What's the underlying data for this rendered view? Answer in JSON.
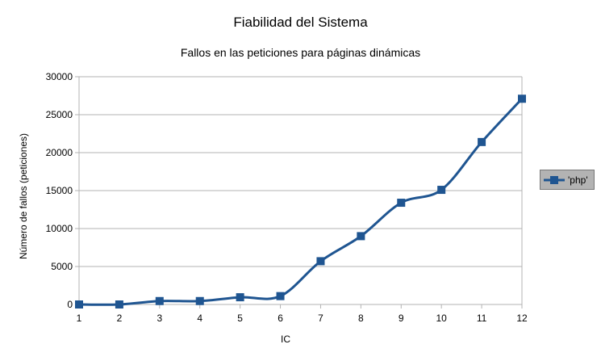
{
  "chart_data": {
    "type": "line",
    "title": "Fiabilidad del Sistema",
    "subtitle": "Fallos en las peticiones para páginas dinámicas",
    "xlabel": "IC",
    "ylabel": "Número de fallos (peticiones)",
    "x": [
      1,
      2,
      3,
      4,
      5,
      6,
      7,
      8,
      9,
      10,
      11,
      12
    ],
    "ylim": [
      0,
      30000
    ],
    "yticks": [
      0,
      5000,
      10000,
      15000,
      20000,
      25000,
      30000
    ],
    "grid": true,
    "legend_position": "right",
    "series": [
      {
        "name": "'php'",
        "color": "#1f5591",
        "marker": "square",
        "values": [
          0,
          0,
          450,
          450,
          950,
          1100,
          5700,
          9000,
          13400,
          15100,
          21400,
          27100
        ]
      }
    ]
  }
}
